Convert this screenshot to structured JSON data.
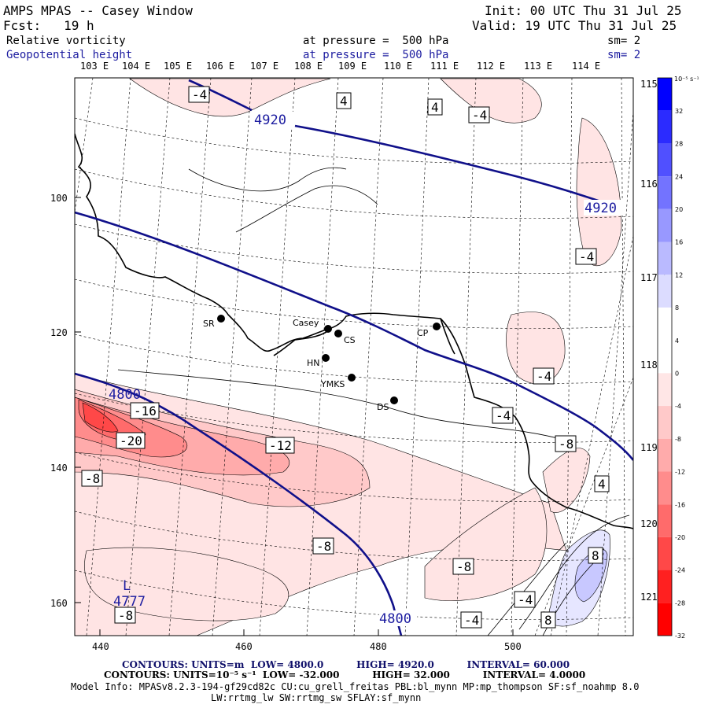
{
  "header": {
    "title": "AMPS MPAS -- Casey Window",
    "forecast": "Fcst:   19 h",
    "init": "Init: 00 UTC Thu 31 Jul 25",
    "valid": "Valid: 19 UTC Thu 31 Jul 25",
    "field1": {
      "name": "Relative vorticity",
      "level": "at pressure =  500 hPa",
      "sm": "sm= 2"
    },
    "field2": {
      "name": "Geopotential height",
      "level": "at pressure =  500 hPa",
      "sm": "sm= 2"
    }
  },
  "top_lon_labels": [
    "103 E",
    "104 E",
    "105 E",
    "106 E",
    "107 E",
    "108 E",
    "109 E",
    "110 E",
    "111 E",
    "112 E",
    "113 E",
    "114 E"
  ],
  "right_lon_labels": [
    "115 E",
    "116 E",
    "117 E",
    "118 E",
    "119 E",
    "120 E",
    "121 E"
  ],
  "x_ticks": [
    "440",
    "460",
    "480",
    "500"
  ],
  "y_ticks": [
    "100",
    "120",
    "140",
    "160"
  ],
  "colorbar": {
    "units": "10⁻⁵ s⁻¹",
    "labels": [
      "32",
      "28",
      "24",
      "20",
      "16",
      "12",
      "8",
      "4",
      "0",
      "-4",
      "-8",
      "-12",
      "-16",
      "-20",
      "-24",
      "-28",
      "-32"
    ],
    "colors": [
      "#0000ff",
      "#2b2bff",
      "#5050ff",
      "#7373ff",
      "#9898ff",
      "#babaff",
      "#dcdcff",
      "#ffffff",
      "#ffffff",
      "#ffe6e6",
      "#ffc9c9",
      "#ffabab",
      "#ff8c8c",
      "#ff6b6b",
      "#ff4848",
      "#ff2020",
      "#ff0000"
    ]
  },
  "stations": [
    {
      "name": "SR"
    },
    {
      "name": "Casey"
    },
    {
      "name": "CS"
    },
    {
      "name": "CP"
    },
    {
      "name": "HN"
    },
    {
      "name": "YMKS"
    },
    {
      "name": "DS"
    }
  ],
  "contour_labels": {
    "height": [
      "4920",
      "4920",
      "4800",
      "4800",
      "4777"
    ],
    "low_marker": "L",
    "vorticity": [
      "-4",
      "4",
      "4",
      "-4",
      "-4",
      "-4",
      "-16",
      "-20",
      "-12",
      "-8",
      "-8",
      "-8",
      "-4",
      "-8",
      "4",
      "-8",
      "8",
      "-4",
      "-4",
      "8",
      "-8"
    ]
  },
  "footer": {
    "line1": "CONTOURS: UNITS=m  LOW= 4800.0          HIGH= 4920.0          INTERVAL= 60.000",
    "line2": "CONTOURS: UNITS=10⁻⁵ s⁻¹  LOW= -32.000          HIGH= 32.000          INTERVAL= 4.0000",
    "line3": "Model Info: MPASv8.2.3-194-gf29cd82c CU:cu_grell_freitas PBL:bl_mynn MP:mp_thompson SF:sf_noahmp 8.0",
    "line4": "LW:rrtmg_lw SW:rrtmg_sw SFLAY:sf_mynn"
  }
}
